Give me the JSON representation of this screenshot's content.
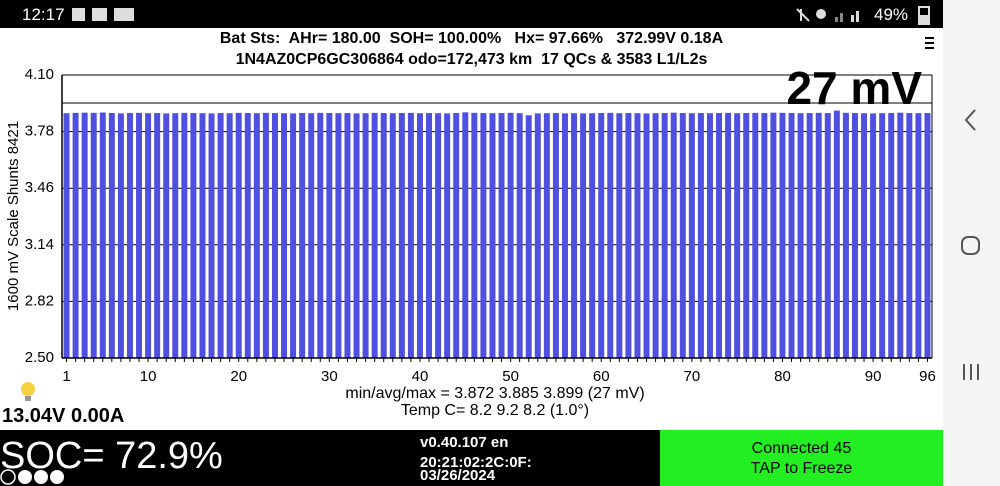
{
  "status_bar": {
    "time": "12:17",
    "battery": "49%"
  },
  "header": {
    "line1": "Bat Sts:  AHr= 180.00  SOH= 100.00%   Hx= 97.66%   372.99V 0.18A",
    "line2": "1N4AZ0CP6GC306864 odo=172,473 km  17 QCs & 3583 L1/L2s"
  },
  "chart_data": {
    "type": "bar",
    "annotation": "27 mV",
    "y_label": "1600 mV Scale   Shunts 8421",
    "color": "#4f4fe0",
    "ylim": [
      2.5,
      4.1
    ],
    "yticks": [
      {
        "value": 2.5,
        "label": "2.50"
      },
      2.82,
      3.14,
      3.46,
      3.78,
      {
        "value": 4.1,
        "label": "4.10"
      }
    ],
    "grid": true,
    "categories": [
      "1",
      null,
      null,
      null,
      null,
      null,
      null,
      null,
      null,
      "10",
      null,
      null,
      null,
      null,
      null,
      null,
      null,
      null,
      null,
      "20",
      null,
      null,
      null,
      null,
      null,
      null,
      null,
      null,
      null,
      "30",
      null,
      null,
      null,
      null,
      null,
      null,
      null,
      null,
      null,
      "40",
      null,
      null,
      null,
      null,
      null,
      null,
      null,
      null,
      null,
      "50",
      null,
      null,
      null,
      null,
      null,
      null,
      null,
      null,
      null,
      "60",
      null,
      null,
      null,
      null,
      null,
      null,
      null,
      null,
      null,
      "70",
      null,
      null,
      null,
      null,
      null,
      null,
      null,
      null,
      null,
      "80",
      null,
      null,
      null,
      null,
      null,
      null,
      null,
      null,
      null,
      "90",
      null,
      null,
      null,
      null,
      null,
      "96"
    ],
    "values": [
      3.884,
      3.886,
      3.887,
      3.886,
      3.888,
      3.885,
      3.883,
      3.885,
      3.886,
      3.884,
      3.885,
      3.883,
      3.884,
      3.886,
      3.885,
      3.884,
      3.883,
      3.885,
      3.884,
      3.886,
      3.885,
      3.884,
      3.886,
      3.885,
      3.884,
      3.883,
      3.885,
      3.884,
      3.886,
      3.885,
      3.884,
      3.885,
      3.883,
      3.884,
      3.886,
      3.885,
      3.884,
      3.885,
      3.886,
      3.884,
      3.885,
      3.884,
      3.883,
      3.885,
      3.889,
      3.886,
      3.885,
      3.884,
      3.885,
      3.886,
      3.884,
      3.872,
      3.883,
      3.884,
      3.885,
      3.883,
      3.884,
      3.883,
      3.884,
      3.885,
      3.886,
      3.884,
      3.885,
      3.884,
      3.883,
      3.884,
      3.885,
      3.887,
      3.885,
      3.884,
      3.885,
      3.884,
      3.885,
      3.886,
      3.884,
      3.885,
      3.886,
      3.885,
      3.887,
      3.886,
      3.885,
      3.884,
      3.885,
      3.886,
      3.885,
      3.899,
      3.886,
      3.885,
      3.884,
      3.883,
      3.884,
      3.885,
      3.887,
      3.885,
      3.884,
      3.885
    ]
  },
  "stats": {
    "min_avg_max": "min/avg/max = 3.872 3.885 3.899  (27 mV)",
    "temp": "Temp C= 8.2  9.2  8.2  (1.0°)"
  },
  "aux_battery": "13.04V 0.00A",
  "footer": {
    "soc": "SOC= 72.9%",
    "version": "v0.40.107 en",
    "mac": "20:21:02:2C:0F:",
    "date": "03/26/2024",
    "connection": "Connected 45",
    "action": "TAP to Freeze"
  }
}
